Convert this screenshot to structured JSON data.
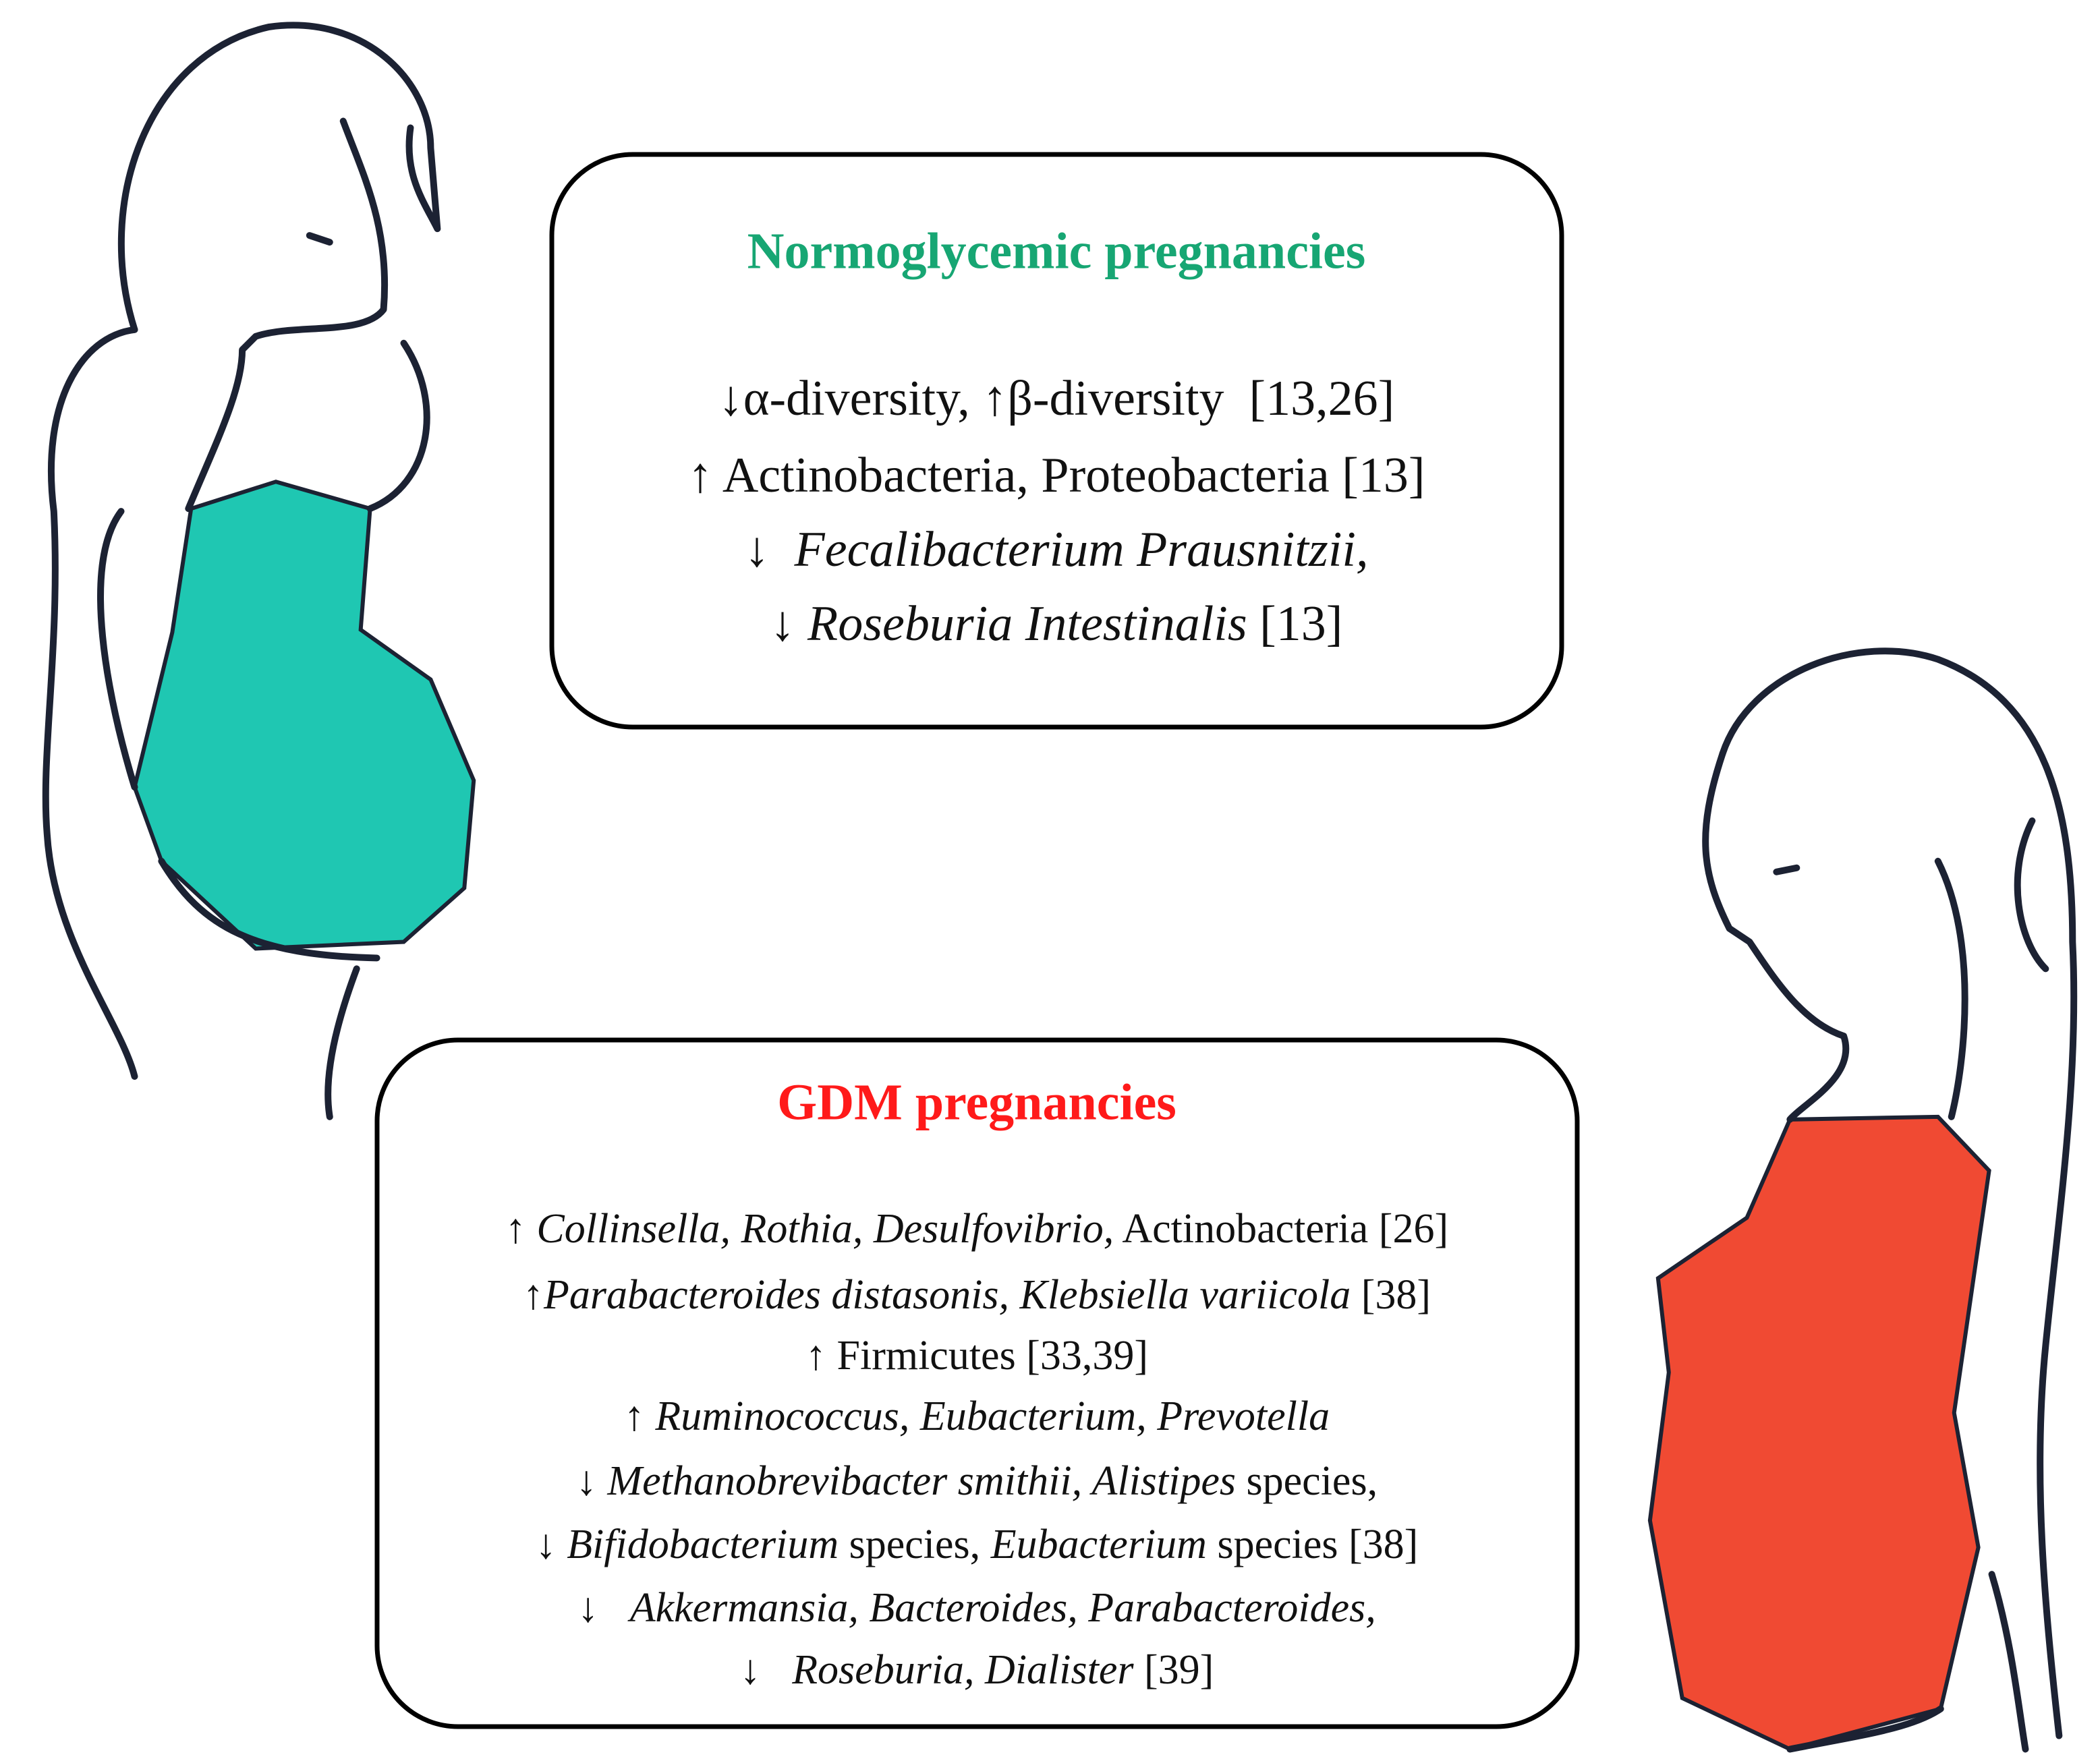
{
  "normoglycemic": {
    "title": "Normoglycemic pregnancies",
    "title_color": "#17a673",
    "lines": [
      [
        {
          "text": "↓α-diversity, ↑β-diversity  [13,26]",
          "italic": false
        }
      ],
      [
        {
          "text": "↑ Actinobacteria, Proteobacteria [13]",
          "italic": false
        }
      ],
      [
        {
          "text": "↓  ",
          "italic": false
        },
        {
          "text": "Fecalibacterium Prausnitzii,",
          "italic": true
        }
      ],
      [
        {
          "text": "↓ ",
          "italic": false
        },
        {
          "text": "Roseburia Intestinalis",
          "italic": true
        },
        {
          "text": " [13]",
          "italic": false
        }
      ]
    ]
  },
  "gdm": {
    "title": "GDM pregnancies",
    "title_color": "#ff1a1a",
    "lines": [
      [
        {
          "text": "↑ ",
          "italic": false
        },
        {
          "text": "Collinsella, Rothia, Desulfovibrio,",
          "italic": true
        },
        {
          "text": " Actinobacteria [26]",
          "italic": false
        }
      ],
      [
        {
          "text": "↑",
          "italic": false
        },
        {
          "text": "Parabacteroides distasonis, Klebsiella variicola",
          "italic": true
        },
        {
          "text": " [38]",
          "italic": false
        }
      ],
      [
        {
          "text": "↑ Firmicutes [33,39]",
          "italic": false
        }
      ],
      [
        {
          "text": "↑ ",
          "italic": false
        },
        {
          "text": "Ruminococcus, Eubacterium, Prevotella",
          "italic": true
        }
      ],
      [
        {
          "text": "↓ ",
          "italic": false
        },
        {
          "text": "Methanobrevibacter smithii, Alistipes",
          "italic": true
        },
        {
          "text": " species,",
          "italic": false
        }
      ],
      [
        {
          "text": "↓ ",
          "italic": false
        },
        {
          "text": "Bifidobacterium",
          "italic": true
        },
        {
          "text": " species, ",
          "italic": false
        },
        {
          "text": "Eubacterium",
          "italic": true
        },
        {
          "text": " species [38]",
          "italic": false
        }
      ],
      [
        {
          "text": "↓   ",
          "italic": false
        },
        {
          "text": "Akkermansia, Bacteroides, Parabacteroides,",
          "italic": true
        }
      ],
      [
        {
          "text": "↓   ",
          "italic": false
        },
        {
          "text": "Roseburia, Dialister",
          "italic": true
        },
        {
          "text": " [39]",
          "italic": false
        }
      ]
    ]
  }
}
